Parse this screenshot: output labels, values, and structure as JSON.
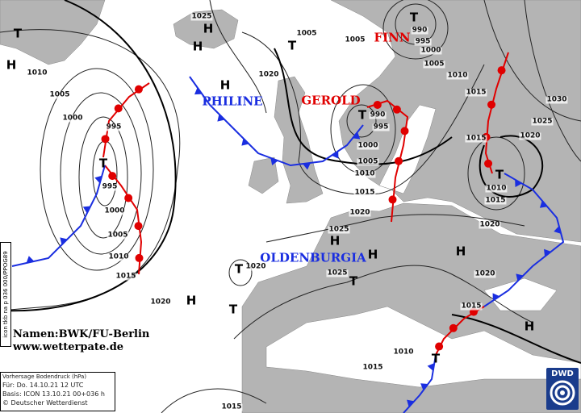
{
  "map": {
    "land_color": "#b4b4b4",
    "sea_color": "#ffffff",
    "isobar_color": "#222222",
    "warm_front_color": "#e00000",
    "cold_front_color": "#1a2ee0",
    "isobar_labels": [
      "1025",
      "1005",
      "1005",
      "990",
      "995",
      "1000",
      "1005",
      "1010",
      "1015",
      "1030",
      "1025",
      "1020",
      "1015",
      "1010",
      "1015",
      "1020",
      "1020",
      "1015",
      "1010",
      "1015",
      "1015",
      "1020",
      "1020",
      "1025",
      "1025",
      "1020",
      "1015",
      "1010",
      "1005",
      "1000",
      "995",
      "990",
      "1020",
      "1010",
      "1005",
      "1000",
      "995",
      "995",
      "1000",
      "1005",
      "1010",
      "1015"
    ],
    "pressure_centers": [
      "T",
      "H",
      "H",
      "H",
      "T",
      "T",
      "H",
      "T",
      "T",
      "T",
      "H",
      "H",
      "H",
      "T",
      "T",
      "H",
      "T",
      "H",
      "T"
    ],
    "system_names": [
      {
        "name": "PHILINE",
        "color": "#1a2ee0"
      },
      {
        "name": "GEROLD",
        "color": "#e00000"
      },
      {
        "name": "FINN",
        "color": "#e00000"
      },
      {
        "name": "OLDENBURGIA",
        "color": "#1a2ee0"
      }
    ]
  },
  "credits": {
    "line1": "Namen:BWK/FU-Berlin",
    "line2": "www.wetterpate.de"
  },
  "legend": {
    "title": "Vorhersage Bodendruck (hPa)",
    "valid": "Für:  Do. 14.10.21  12 UTC",
    "basis": "Basis: ICON  13.10.21 00+036 h",
    "copyright": "© Deutscher Wetterdienst"
  },
  "model_tag": "icon tkb na p 036 000/PPOG89",
  "logo": "DWD"
}
